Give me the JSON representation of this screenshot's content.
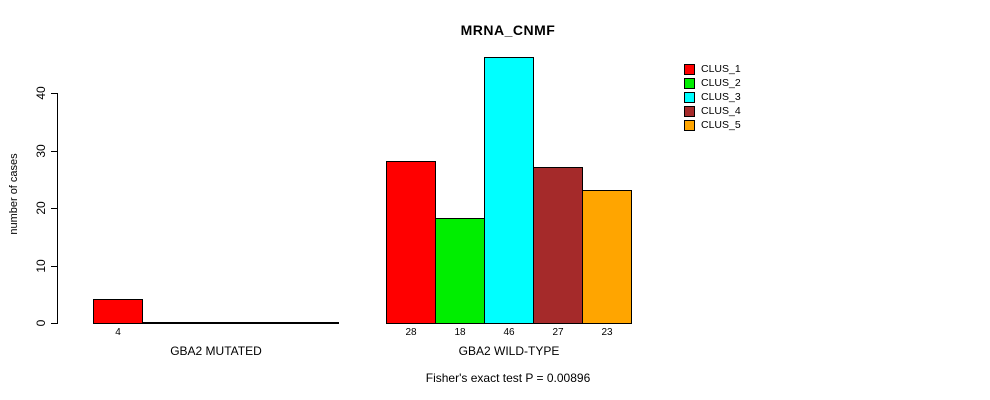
{
  "title": "MRNA_CNMF",
  "chart_data": {
    "type": "bar",
    "title": "MRNA_CNMF",
    "xlabel": "",
    "ylabel": "number of cases",
    "ylim": [
      0,
      46
    ],
    "yticks": [
      0,
      10,
      20,
      30,
      40
    ],
    "grid": false,
    "legend_position": "top-right",
    "legend": [
      {
        "label": "CLUS_1",
        "color": "#FF0000"
      },
      {
        "label": "CLUS_2",
        "color": "#00EE00"
      },
      {
        "label": "CLUS_3",
        "color": "#00FFFF"
      },
      {
        "label": "CLUS_4",
        "color": "#A52A2A"
      },
      {
        "label": "CLUS_5",
        "color": "#FFA500"
      }
    ],
    "groups": [
      {
        "label": "GBA2 MUTATED",
        "bars": [
          {
            "cluster": "CLUS_1",
            "value": 4,
            "value_label": "4",
            "color": "#FF0000"
          },
          {
            "cluster": "CLUS_2",
            "value": 0,
            "value_label": "",
            "color": "#00EE00"
          },
          {
            "cluster": "CLUS_3",
            "value": 0,
            "value_label": "",
            "color": "#00FFFF"
          },
          {
            "cluster": "CLUS_4",
            "value": 0,
            "value_label": "",
            "color": "#A52A2A"
          },
          {
            "cluster": "CLUS_5",
            "value": 0,
            "value_label": "",
            "color": "#FFA500"
          }
        ]
      },
      {
        "label": "GBA2 WILD-TYPE",
        "bars": [
          {
            "cluster": "CLUS_1",
            "value": 28,
            "value_label": "28",
            "color": "#FF0000"
          },
          {
            "cluster": "CLUS_2",
            "value": 18,
            "value_label": "18",
            "color": "#00EE00"
          },
          {
            "cluster": "CLUS_3",
            "value": 46,
            "value_label": "46",
            "color": "#00FFFF"
          },
          {
            "cluster": "CLUS_4",
            "value": 27,
            "value_label": "27",
            "color": "#A52A2A"
          },
          {
            "cluster": "CLUS_5",
            "value": 23,
            "value_label": "23",
            "color": "#FFA500"
          }
        ]
      }
    ],
    "annotation": "Fisher's exact test P = 0.00896"
  }
}
